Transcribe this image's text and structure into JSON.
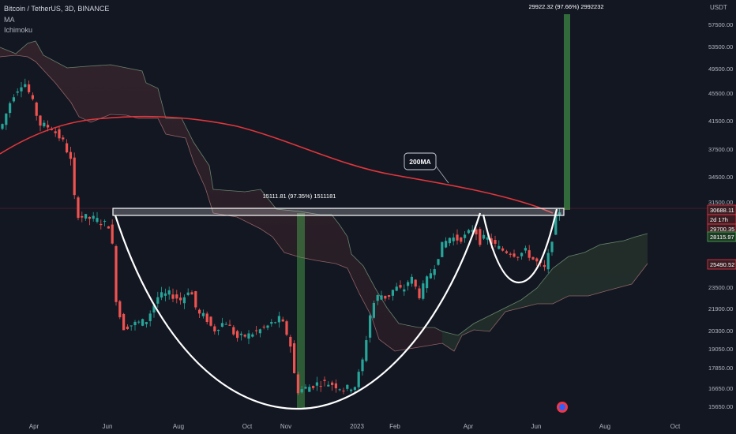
{
  "header": {
    "symbol": "Bitcoin / TetherUS, 3D, BINANCE",
    "indicators": [
      "MA",
      "Ichimoku"
    ]
  },
  "chart_data": {
    "type": "candlestick",
    "currency_label": "USDT",
    "y_ticks": [
      "57500.00",
      "53500.00",
      "49500.00",
      "45500.00",
      "41500.00",
      "37500.00",
      "34500.00",
      "31500.00",
      "23500.00",
      "21900.00",
      "20300.00",
      "19050.00",
      "17850.00",
      "16650.00",
      "15650.00"
    ],
    "x_ticks": [
      "Apr",
      "Jun",
      "Aug",
      "Oct",
      "Nov",
      "2023",
      "Feb",
      "Apr",
      "Jun",
      "Aug",
      "Oct"
    ],
    "price_labels": [
      {
        "name": "current",
        "text": "30688.11",
        "color": "#f23645"
      },
      {
        "name": "countdown",
        "text": "2d 17h",
        "color": "#f23645"
      },
      {
        "name": "level",
        "text": "29700.35",
        "color": "#f23645"
      },
      {
        "name": "cloud-top",
        "text": "28115.97",
        "color": "#4caf50"
      },
      {
        "name": "cloud-bottom",
        "text": "25490.52",
        "color": "#f23645"
      }
    ],
    "annotations": {
      "ma_label": "200MA",
      "measure_left": "15111.81 (97.35%) 1511181",
      "measure_right": "29922.32 (97.66%) 2992232"
    },
    "colors": {
      "up": "#26a69a",
      "down": "#ef5350",
      "ma": "#e0363b",
      "bg": "#131722"
    }
  }
}
